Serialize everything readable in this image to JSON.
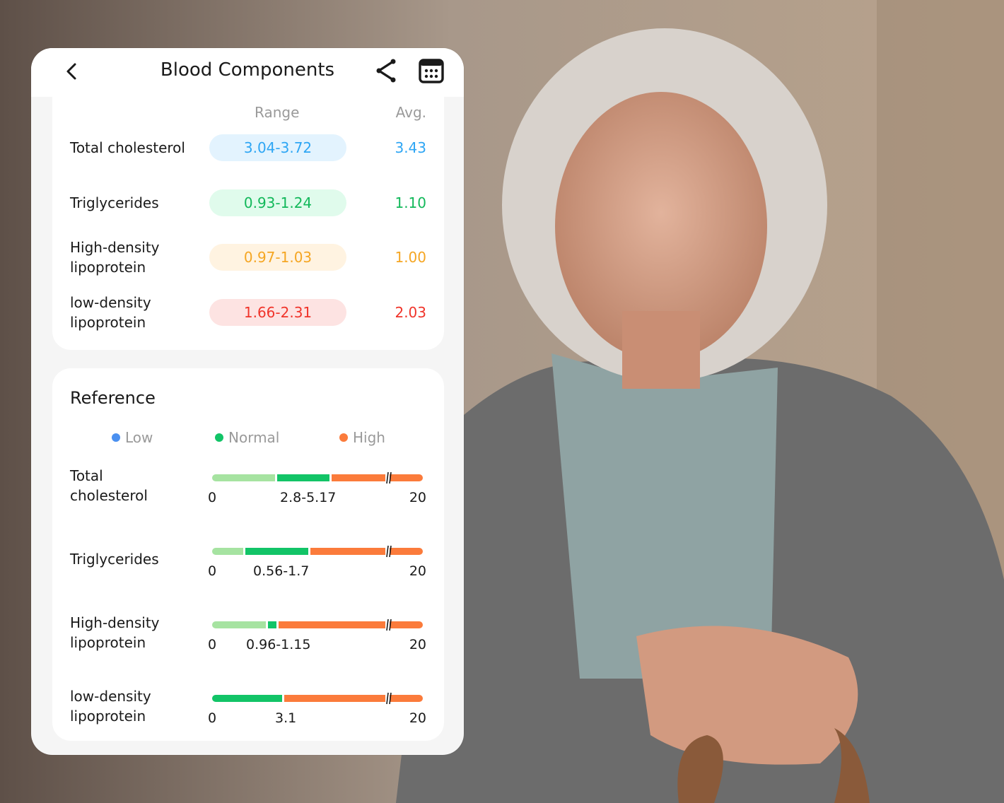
{
  "header": {
    "title": "Blood Components",
    "back_icon": "chevron-left-icon",
    "share_icon": "share-icon",
    "calendar_icon": "calendar-icon"
  },
  "summary": {
    "col_range": "Range",
    "col_avg": "Avg.",
    "rows": [
      {
        "name": "Total cholesterol",
        "range": "3.04-3.72",
        "avg": "3.43",
        "color": "#2ea6f4",
        "bg": "#e3f3fe"
      },
      {
        "name": "Triglycerides",
        "range": "0.93-1.24",
        "avg": "1.10",
        "color": "#12b85a",
        "bg": "#e0fbec"
      },
      {
        "name": "High-density lipoprotein",
        "range": "0.97-1.03",
        "avg": "1.00",
        "color": "#f5a623",
        "bg": "#fff3e1"
      },
      {
        "name": "low-density lipoprotein",
        "range": "1.66-2.31",
        "avg": "2.03",
        "color": "#f0342a",
        "bg": "#fde3e2"
      }
    ]
  },
  "reference": {
    "title": "Reference",
    "legend": [
      {
        "label": "Low",
        "color": "#4a90f0"
      },
      {
        "label": "Normal",
        "color": "#12c467"
      },
      {
        "label": "High",
        "color": "#fb7b3b"
      }
    ],
    "colors": {
      "low_bar": "#a6e3a1",
      "normal_bar": "#12c467",
      "high_bar": "#fb7b3b"
    },
    "rows": [
      {
        "name": "Total cholesterol",
        "min": "0",
        "normal": "2.8-5.17",
        "max": "20"
      },
      {
        "name": "Triglycerides",
        "min": "0",
        "normal": "0.56-1.7",
        "max": "20"
      },
      {
        "name": "High-density lipoprotein",
        "min": "0",
        "normal": "0.96-1.15",
        "max": "20"
      },
      {
        "name": "low-density lipoprotein",
        "min": "0",
        "normal": "3.1",
        "max": "20"
      }
    ]
  }
}
